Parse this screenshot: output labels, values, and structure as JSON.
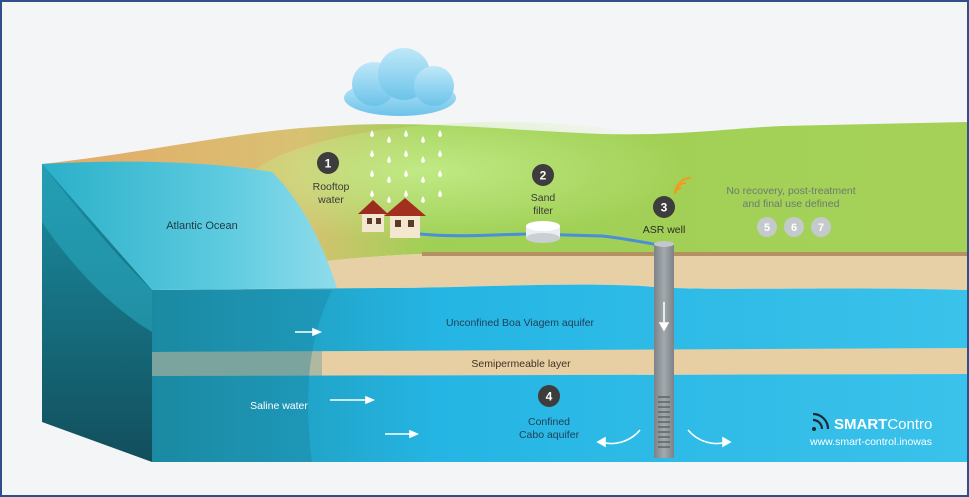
{
  "labels": {
    "ocean": "Atlantic Ocean",
    "rooftop_line1": "Rooftop",
    "rooftop_line2": "water",
    "sand_line1": "Sand",
    "sand_line2": "filter",
    "asr": "ASR well",
    "no_recovery_line1": "No recovery, post-treatment",
    "no_recovery_line2": "and final use defined",
    "unconfined": "Unconfined Boa Viagem aquifer",
    "semipermeable": "Semipermeable layer",
    "saline": "Saline water",
    "confined_line1": "Confined",
    "confined_line2": "Cabo aquifer"
  },
  "steps": {
    "s1": "1",
    "s2": "2",
    "s3": "3",
    "s4": "4",
    "s5": "5",
    "s6": "6",
    "s7": "7"
  },
  "brand": {
    "smart": "SMART",
    "control": "Contro",
    "url": "www.smart-control.inowas"
  },
  "colors": {
    "ocean": "#4fc4dc",
    "aquifer": "#29b6e6",
    "land": "#9ccf52",
    "sand": "#e7cfa3",
    "well": "#8f969b",
    "badge_dark": "#3d3d3d",
    "badge_light": "#c4c9cc",
    "signal": "#f29a1d"
  },
  "icons": [
    "cloud-icon",
    "rain-icon",
    "house-icon",
    "sand-filter-icon",
    "wifi-signal-icon",
    "smartcontrol-logo-icon",
    "flow-arrow-icon"
  ]
}
